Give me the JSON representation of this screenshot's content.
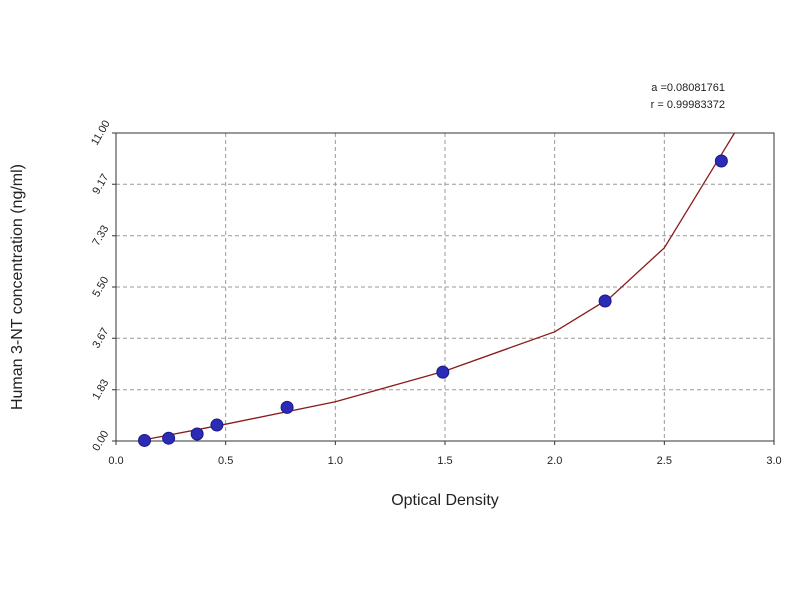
{
  "chart_data": {
    "type": "scatter",
    "xlabel": "Optical Density",
    "ylabel": "Human 3-NT concentration (ng/ml)",
    "annotations": [
      "a =0.08081761",
      "r = 0.99983372"
    ],
    "xlim": [
      0,
      3
    ],
    "ylim": [
      0,
      11
    ],
    "xticks": [
      {
        "value": 0,
        "label": "0.0"
      },
      0.5,
      {
        "value": 1,
        "label": "1.0"
      },
      1.5,
      {
        "value": 2,
        "label": "2.0"
      },
      2.5,
      {
        "value": 3,
        "label": "3.0"
      }
    ],
    "yticks": [
      {
        "value": 0,
        "label": "0.00"
      },
      1.83,
      3.67,
      {
        "value": 5.5,
        "label": "5.50"
      },
      7.33,
      9.17,
      {
        "value": 11,
        "label": "11.00"
      }
    ],
    "grid": true,
    "series": [
      {
        "type": "scatter",
        "color": "#2b2bb8",
        "x": [
          0.13,
          0.24,
          0.37,
          0.46,
          0.78,
          1.49,
          2.23,
          2.76
        ],
        "values": [
          0.02,
          0.1,
          0.25,
          0.57,
          1.2,
          2.46,
          5.0,
          10.0
        ]
      },
      {
        "type": "line",
        "color": "#8b1a1a",
        "x": [
          0.1,
          0.5,
          1.0,
          1.5,
          2.0,
          2.25,
          2.5,
          2.75,
          2.82
        ],
        "values": [
          0,
          0.6,
          1.4,
          2.5,
          3.9,
          5.1,
          6.9,
          10.1,
          11
        ]
      }
    ]
  }
}
